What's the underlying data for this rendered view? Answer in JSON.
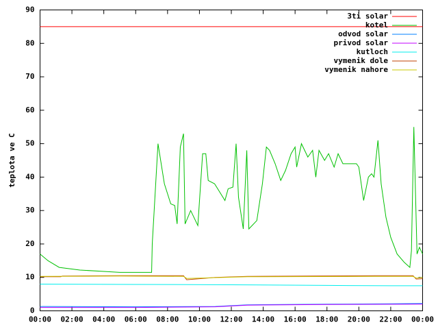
{
  "chart_data": {
    "type": "line",
    "ylabel": "teplota ve C",
    "xlim": [
      0,
      24
    ],
    "xticks": [
      {
        "value": 0,
        "label": "00:00"
      },
      {
        "value": 2,
        "label": "02:00"
      },
      {
        "value": 4,
        "label": "04:00"
      },
      {
        "value": 6,
        "label": "06:00"
      },
      {
        "value": 8,
        "label": "08:00"
      },
      {
        "value": 10,
        "label": "10:00"
      },
      {
        "value": 12,
        "label": "12:00"
      },
      {
        "value": 14,
        "label": "14:00"
      },
      {
        "value": 16,
        "label": "16:00"
      },
      {
        "value": 18,
        "label": "18:00"
      },
      {
        "value": 20,
        "label": "20:00"
      },
      {
        "value": 22,
        "label": "22:00"
      },
      {
        "value": 24,
        "label": "00:00"
      }
    ],
    "ylim": [
      0,
      90
    ],
    "yticks": [
      0,
      10,
      20,
      30,
      40,
      50,
      60,
      70,
      80,
      90
    ],
    "legend": "top-right",
    "series": [
      {
        "name": "3ti solar",
        "color": "#ff0000",
        "x": [
          0,
          24
        ],
        "values": [
          85,
          85
        ]
      },
      {
        "name": "kotel",
        "color": "#00c000",
        "x": [
          0,
          0.5,
          1.2,
          2.5,
          4,
          5,
          7.0,
          7.04,
          7.4,
          7.8,
          8.2,
          8.45,
          8.6,
          8.8,
          9.0,
          9.1,
          9.45,
          9.9,
          10.2,
          10.4,
          10.55,
          10.95,
          11.6,
          11.8,
          12.1,
          12.3,
          12.45,
          12.75,
          12.97,
          13.1,
          13.6,
          13.95,
          14.2,
          14.4,
          14.75,
          15.1,
          15.4,
          15.75,
          16.0,
          16.1,
          16.4,
          16.8,
          17.1,
          17.3,
          17.5,
          17.85,
          18.1,
          18.45,
          18.7,
          19.0,
          19.3,
          19.85,
          20.0,
          20.3,
          20.6,
          20.8,
          20.95,
          21.2,
          21.4,
          21.7,
          22.0,
          22.4,
          22.85,
          23.2,
          23.3,
          23.45,
          23.65,
          23.8,
          24
        ],
        "values": [
          17,
          15,
          13,
          12.2,
          11.8,
          11.5,
          11.5,
          20,
          50,
          38,
          32,
          31.5,
          26,
          49,
          53,
          26,
          30,
          25.5,
          47,
          47,
          39,
          38,
          33,
          36.5,
          37,
          50,
          34,
          24.5,
          48,
          24.5,
          27,
          38,
          49,
          48,
          44,
          39,
          42,
          47,
          49,
          43,
          50,
          46,
          48,
          40,
          48,
          45,
          47,
          43,
          47,
          44,
          44,
          44,
          43,
          33,
          40,
          41,
          40,
          51,
          38,
          28,
          22,
          17,
          14.5,
          13,
          18,
          55,
          17,
          19,
          17
        ]
      },
      {
        "name": "odvod solar",
        "color": "#0080ff",
        "x": [
          0,
          6,
          11,
          13,
          18,
          22,
          24
        ],
        "values": [
          1.3,
          1.2,
          1.3,
          1.8,
          2.0,
          2.1,
          2.2
        ]
      },
      {
        "name": "privod solar",
        "color": "#c000ff",
        "x": [
          0,
          6,
          11,
          13,
          18,
          24
        ],
        "values": [
          1.0,
          1.0,
          1.2,
          1.7,
          1.9,
          2.0
        ]
      },
      {
        "name": "kutloch",
        "color": "#00eeee",
        "x": [
          0,
          6,
          12,
          18,
          22,
          24
        ],
        "values": [
          8,
          7.9,
          7.8,
          7.6,
          7.5,
          7.5
        ]
      },
      {
        "name": "vymenik dole",
        "color": "#c04000",
        "x": [
          0,
          1.3,
          1.4,
          5,
          9.0,
          9.2,
          10,
          11,
          13,
          17,
          21,
          23.4,
          23.6,
          24
        ],
        "values": [
          10.2,
          10.2,
          10.4,
          10.5,
          10.5,
          9.3,
          9.6,
          10,
          10.3,
          10.4,
          10.5,
          10.5,
          9.5,
          9.6
        ]
      },
      {
        "name": "vymenik nahore",
        "color": "#c8c800",
        "x": [
          0,
          5,
          9.0,
          9.2,
          10,
          13,
          21,
          23.4,
          23.6,
          24
        ],
        "values": [
          10.3,
          10.4,
          10.3,
          9.7,
          9.8,
          10.2,
          10.3,
          10.3,
          9.8,
          10
        ]
      }
    ]
  }
}
